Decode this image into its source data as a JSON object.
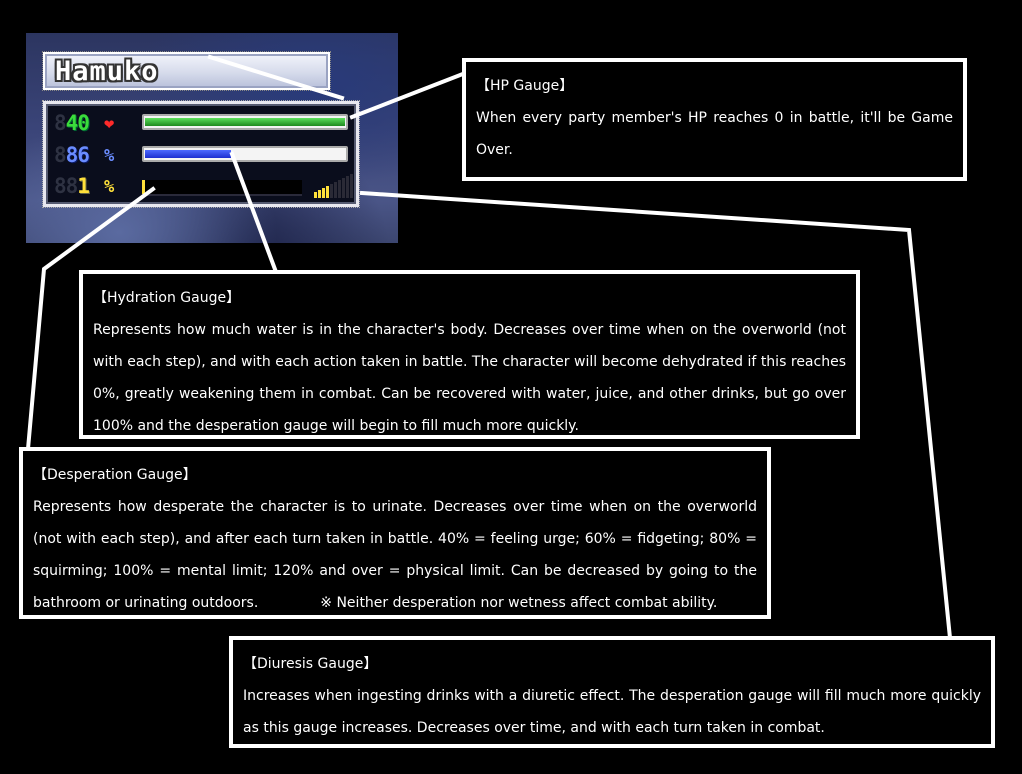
{
  "character": {
    "name": "Hamuko",
    "hp": {
      "value": "40",
      "ghost_digit": "8",
      "fill_fraction": 1.0,
      "icon": "heart-icon"
    },
    "hydration": {
      "value": "86",
      "ghost_digit": "8",
      "unit": "%",
      "fill_fraction": 0.43
    },
    "desperation": {
      "value": "1",
      "ghost_digits": "88",
      "unit": "%",
      "fill_fraction": 0.01
    },
    "diuresis": {
      "level_fraction": 0.4
    }
  },
  "colors": {
    "hp": "#3bdc3b",
    "hydration": "#4d6aff",
    "desperation": "#ffe03a",
    "heart": "#ff2a2a"
  },
  "boxes": {
    "hp": {
      "title": "【HP Gauge】",
      "body": "When every party member's HP reaches 0 in battle, it'll be Game Over."
    },
    "hydration": {
      "title": "【Hydration Gauge】",
      "body": "Represents how much water is in the character's body. Decreases over time when on the overworld (not with each step), and with each action taken in battle. The character will become dehydrated if this reaches 0%, greatly weakening them in combat. Can be recovered with water, juice, and other drinks, but go over 100% and the desperation gauge will begin to fill much more quickly."
    },
    "desperation": {
      "title": "【Desperation Gauge】",
      "body": "Represents how desperate the character is to urinate. Decreases over time when on the overworld (not with each step), and after each turn taken in battle. 40% = feeling urge; 60% = fidgeting; 80% = squirming; 100% = mental limit; 120% and over = physical limit. Can be decreased by going to the bathroom or urinating outdoors.",
      "note": "※ Neither desperation nor wetness affect combat ability."
    },
    "diuresis": {
      "title": "【Diuresis Gauge】",
      "body": "Increases when ingesting drinks with a diuretic effect. The desperation gauge will fill much more quickly as this gauge increases. Decreases over time, and with each turn taken in combat."
    }
  }
}
